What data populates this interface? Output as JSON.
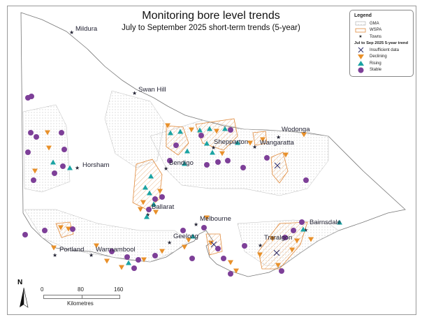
{
  "title": "Monitoring bore level trends",
  "subtitle": "July to September 2025 short-term trends (5-year)",
  "legend": {
    "heading": "Legend",
    "gma": "GMA",
    "wspa": "WSPA",
    "towns": "Towns",
    "trend_heading": "Jul to Sep 2025 5-year trend",
    "insufficient": "Insufficient data",
    "declining": "Declining",
    "rising": "Rising",
    "stable": "Stable"
  },
  "colors": {
    "declining": "#e8902a",
    "rising": "#1aa3a3",
    "stable": "#7d3f98",
    "insufficient": "#2b2b6b",
    "wspa": "#e08a3c",
    "gma": "#bfc4cc"
  },
  "towns": [
    "Mildura",
    "Swan Hill",
    "Horsham",
    "Bendigo",
    "Shepparton",
    "Wangaratta",
    "Wodonga",
    "Ballarat",
    "Melbourne",
    "Geelong",
    "Bairnsdale",
    "Traralgon",
    "Portland",
    "Warrnambool"
  ],
  "scale": {
    "labels": [
      "0",
      "80",
      "160"
    ],
    "unit": "Kilometres"
  },
  "north": "N"
}
